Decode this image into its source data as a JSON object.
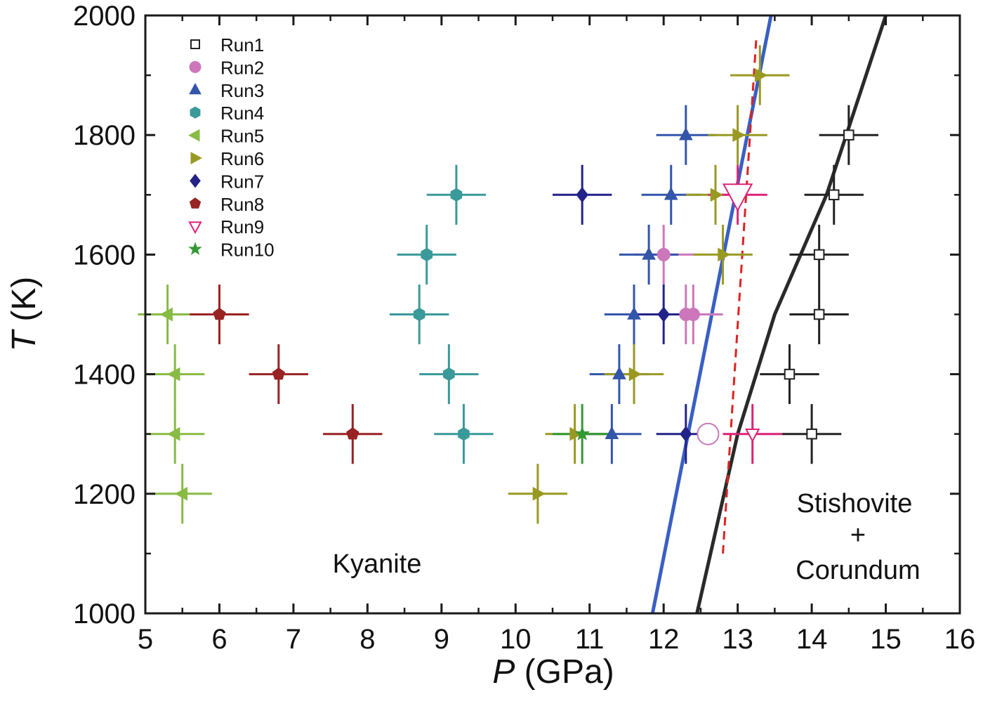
{
  "chart_data": {
    "type": "scatter",
    "xlabel_symbol": "P",
    "xlabel_unit": " (GPa)",
    "ylabel_symbol": "T",
    "ylabel_unit": " (K)",
    "xlim": [
      5,
      16
    ],
    "ylim": [
      1000,
      2000
    ],
    "xticks": [
      "5",
      "6",
      "7",
      "8",
      "9",
      "10",
      "11",
      "12",
      "13",
      "14",
      "15",
      "16"
    ],
    "yticks": [
      "1000",
      "1200",
      "1400",
      "1600",
      "1800",
      "2000"
    ],
    "legend_position": "top-left",
    "region_labels": {
      "kyanite": "Kyanite",
      "stishovite": "Stishovite",
      "plus": "+",
      "corundum": "Corundum"
    },
    "series": [
      {
        "name": "Run1",
        "marker": "square",
        "filled": false,
        "color": "#222222",
        "points": [
          [
            14.0,
            1300
          ],
          [
            13.7,
            1400
          ],
          [
            14.1,
            1500
          ],
          [
            14.1,
            1600
          ],
          [
            14.3,
            1700
          ],
          [
            14.5,
            1800
          ]
        ]
      },
      {
        "name": "Run2",
        "marker": "circle",
        "filled": true,
        "color": "#cc77bb",
        "points": [
          [
            12.0,
            1600
          ],
          [
            12.3,
            1500
          ],
          [
            12.4,
            1500
          ]
        ]
      },
      {
        "name": "Run3",
        "marker": "triangle-up",
        "filled": true,
        "color": "#3355aa",
        "points": [
          [
            11.3,
            1300
          ],
          [
            11.4,
            1400
          ],
          [
            11.6,
            1500
          ],
          [
            11.8,
            1600
          ],
          [
            12.1,
            1700
          ],
          [
            12.3,
            1800
          ]
        ]
      },
      {
        "name": "Run4",
        "marker": "hexagon",
        "filled": true,
        "color": "#3a9999",
        "points": [
          [
            9.3,
            1300
          ],
          [
            9.1,
            1400
          ],
          [
            8.7,
            1500
          ],
          [
            8.8,
            1600
          ],
          [
            9.2,
            1700
          ]
        ]
      },
      {
        "name": "Run5",
        "marker": "triangle-left",
        "filled": true,
        "color": "#88bb44",
        "points": [
          [
            5.5,
            1200
          ],
          [
            5.4,
            1300
          ],
          [
            5.4,
            1400
          ],
          [
            5.3,
            1500
          ]
        ]
      },
      {
        "name": "Run6",
        "marker": "triangle-right",
        "filled": true,
        "color": "#999922",
        "points": [
          [
            10.3,
            1200
          ],
          [
            10.8,
            1300
          ],
          [
            11.6,
            1400
          ],
          [
            12.8,
            1600
          ],
          [
            12.7,
            1700
          ],
          [
            13.0,
            1800
          ],
          [
            13.3,
            1900
          ]
        ]
      },
      {
        "name": "Run7",
        "marker": "diamond",
        "filled": true,
        "color": "#222288",
        "points": [
          [
            12.3,
            1300
          ],
          [
            12.0,
            1500
          ],
          [
            10.9,
            1700
          ]
        ]
      },
      {
        "name": "Run8",
        "marker": "pentagon",
        "filled": true,
        "color": "#992222",
        "points": [
          [
            7.8,
            1300
          ],
          [
            6.8,
            1400
          ],
          [
            6.0,
            1500
          ]
        ]
      },
      {
        "name": "Run9",
        "marker": "triangle-down",
        "filled": false,
        "color": "#dd2277",
        "points": [
          [
            13.2,
            1300
          ],
          [
            13.0,
            1700
          ]
        ]
      },
      {
        "name": "Run10",
        "marker": "star",
        "filled": true,
        "color": "#339933",
        "points": [
          [
            10.9,
            1300
          ]
        ]
      }
    ],
    "extra_points": [
      {
        "marker": "circle",
        "filled": false,
        "color": "#cc77bb",
        "size": 15,
        "x": 12.6,
        "y": 1300
      },
      {
        "marker": "triangle-down",
        "filled": false,
        "color": "#dd2277",
        "size": 20,
        "x": 13.0,
        "y": 1700
      }
    ],
    "lines": [
      {
        "color": "#3a5fc4",
        "dash": false,
        "points": [
          [
            11.85,
            1000
          ],
          [
            13.45,
            2000
          ]
        ]
      },
      {
        "color": "#2a2a2a",
        "dash": false,
        "points": [
          [
            12.45,
            1000
          ],
          [
            13.0,
            1300
          ],
          [
            13.5,
            1500
          ],
          [
            14.2,
            1700
          ],
          [
            15.0,
            2000
          ]
        ]
      },
      {
        "color": "#dd2222",
        "dash": true,
        "points": [
          [
            12.8,
            1100
          ],
          [
            13.25,
            1960
          ]
        ]
      }
    ]
  }
}
